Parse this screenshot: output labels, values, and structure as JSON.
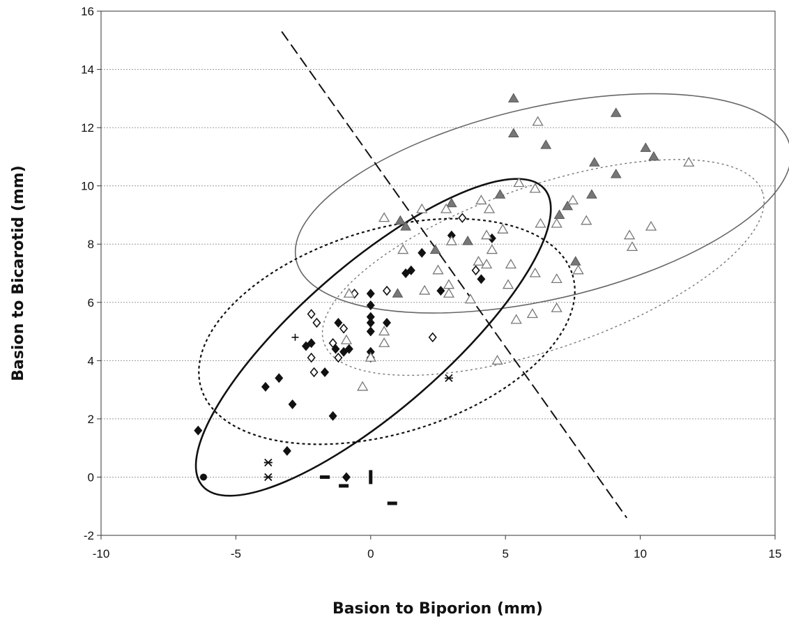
{
  "chart_data": {
    "type": "scatter",
    "title": "",
    "xlabel": "Basion to Biporion (mm)",
    "ylabel": "Basion to Bicarotid (mm)",
    "xlim": [
      -10,
      15
    ],
    "ylim": [
      -2,
      16
    ],
    "xticks": [
      "-10",
      "-5",
      "0",
      "5",
      "10",
      "15"
    ],
    "yticks": [
      "-2",
      "0",
      "2",
      "4",
      "6",
      "8",
      "10",
      "12",
      "14",
      "16"
    ],
    "grid": "horizontal-dotted",
    "colors": {
      "black": "#111111",
      "gray_fill": "#777777",
      "gray_line": "#666666"
    },
    "series": [
      {
        "marker": "filled-diamond",
        "color": "#111111",
        "points": [
          [
            -6.4,
            1.6
          ],
          [
            -3.9,
            3.1
          ],
          [
            -3.4,
            3.4
          ],
          [
            -2.9,
            2.5
          ],
          [
            -3.1,
            0.9
          ],
          [
            -2.4,
            4.5
          ],
          [
            -2.2,
            4.6
          ],
          [
            -1.7,
            3.6
          ],
          [
            -1.4,
            2.1
          ],
          [
            -1.3,
            4.4
          ],
          [
            -1.2,
            5.3
          ],
          [
            -1.0,
            4.3
          ],
          [
            -0.8,
            4.4
          ],
          [
            0,
            6.3
          ],
          [
            0,
            5.9
          ],
          [
            0,
            5.5
          ],
          [
            0,
            5.3
          ],
          [
            0,
            5.0
          ],
          [
            0,
            4.3
          ],
          [
            0,
            4.1
          ],
          [
            0.6,
            5.3
          ],
          [
            1.3,
            7.0
          ],
          [
            1.5,
            7.1
          ],
          [
            1.9,
            7.7
          ],
          [
            2.6,
            6.4
          ],
          [
            3.0,
            8.3
          ],
          [
            4.1,
            6.8
          ],
          [
            4.5,
            8.2
          ],
          [
            -0.9,
            0.0
          ]
        ]
      },
      {
        "marker": "open-diamond",
        "color": "#111111",
        "points": [
          [
            -2.2,
            5.6
          ],
          [
            -2.0,
            5.3
          ],
          [
            -2.2,
            4.1
          ],
          [
            -2.1,
            3.6
          ],
          [
            -1.4,
            4.6
          ],
          [
            -1.2,
            4.1
          ],
          [
            -1.0,
            5.1
          ],
          [
            -0.6,
            6.3
          ],
          [
            0.6,
            6.4
          ],
          [
            3.4,
            8.9
          ],
          [
            3.9,
            7.1
          ],
          [
            2.3,
            4.8
          ]
        ]
      },
      {
        "marker": "filled-triangle",
        "color": "#777777",
        "points": [
          [
            5.3,
            13.0
          ],
          [
            5.3,
            11.8
          ],
          [
            6.5,
            11.4
          ],
          [
            9.1,
            12.5
          ],
          [
            8.3,
            10.8
          ],
          [
            10.2,
            11.3
          ],
          [
            10.5,
            11.0
          ],
          [
            9.1,
            10.4
          ],
          [
            8.2,
            9.7
          ],
          [
            7.3,
            9.3
          ],
          [
            7.0,
            9.0
          ],
          [
            4.8,
            9.7
          ],
          [
            3.0,
            9.4
          ],
          [
            1.1,
            8.8
          ],
          [
            1.3,
            8.6
          ],
          [
            3.6,
            8.1
          ],
          [
            2.4,
            7.8
          ],
          [
            1.0,
            6.3
          ],
          [
            7.6,
            7.4
          ]
        ]
      },
      {
        "marker": "open-triangle",
        "color": "#777777",
        "points": [
          [
            6.2,
            12.2
          ],
          [
            11.8,
            10.8
          ],
          [
            5.5,
            10.1
          ],
          [
            6.1,
            9.9
          ],
          [
            4.1,
            9.5
          ],
          [
            4.4,
            9.2
          ],
          [
            1.9,
            9.2
          ],
          [
            2.8,
            9.2
          ],
          [
            7.5,
            9.5
          ],
          [
            6.3,
            8.7
          ],
          [
            6.9,
            8.7
          ],
          [
            8.0,
            8.8
          ],
          [
            4.9,
            8.5
          ],
          [
            4.3,
            8.3
          ],
          [
            3.0,
            8.1
          ],
          [
            1.2,
            7.8
          ],
          [
            4.5,
            7.8
          ],
          [
            9.6,
            8.3
          ],
          [
            10.4,
            8.6
          ],
          [
            9.7,
            7.9
          ],
          [
            4.0,
            7.4
          ],
          [
            4.3,
            7.3
          ],
          [
            5.2,
            7.3
          ],
          [
            7.7,
            7.1
          ],
          [
            2.5,
            7.1
          ],
          [
            6.1,
            7.0
          ],
          [
            6.9,
            6.8
          ],
          [
            5.1,
            6.6
          ],
          [
            2.9,
            6.6
          ],
          [
            2.0,
            6.4
          ],
          [
            2.9,
            6.3
          ],
          [
            3.7,
            6.1
          ],
          [
            -0.8,
            6.3
          ],
          [
            0.5,
            5.0
          ],
          [
            0.5,
            4.6
          ],
          [
            -0.9,
            4.7
          ],
          [
            -0.3,
            3.1
          ],
          [
            0,
            4.1
          ],
          [
            5.4,
            5.4
          ],
          [
            6.0,
            5.6
          ],
          [
            6.9,
            5.8
          ],
          [
            4.7,
            4.0
          ],
          [
            0.5,
            8.9
          ]
        ]
      },
      {
        "marker": "filled-circle",
        "color": "#111111",
        "points": [
          [
            -6.2,
            0.0
          ]
        ]
      },
      {
        "marker": "star",
        "color": "#111111",
        "points": [
          [
            -3.8,
            0.5
          ],
          [
            -3.8,
            0.0
          ],
          [
            2.9,
            3.4
          ]
        ]
      },
      {
        "marker": "plus",
        "color": "#111111",
        "points": [
          [
            -2.8,
            4.8
          ]
        ]
      },
      {
        "marker": "dash",
        "color": "#111111",
        "points": [
          [
            -1.7,
            0.0
          ],
          [
            -1.0,
            -0.3
          ],
          [
            0.8,
            -0.9
          ]
        ]
      },
      {
        "marker": "vbar",
        "color": "#111111",
        "points": [
          [
            0,
            0.0
          ]
        ]
      }
    ],
    "ellipses": [
      {
        "style": "solid-gray",
        "center": [
          6.4,
          9.4
        ],
        "rx": 9.4,
        "ry": 3.3,
        "angle_deg": -13
      },
      {
        "style": "dotted-gray",
        "center": [
          6.4,
          7.2
        ],
        "rx": 8.6,
        "ry": 2.8,
        "angle_deg": -19
      },
      {
        "style": "dashed-black",
        "center": [
          0.6,
          5.0
        ],
        "rx": 7.2,
        "ry": 3.5,
        "angle_deg": -17
      },
      {
        "style": "solid-black",
        "center": [
          0.1,
          4.8
        ],
        "rx": 8.4,
        "ry": 2.5,
        "angle_deg": -41
      }
    ],
    "lines": [
      {
        "style": "long-dash-black",
        "from": [
          -3.3,
          15.3
        ],
        "to": [
          9.5,
          -1.4
        ]
      }
    ]
  }
}
